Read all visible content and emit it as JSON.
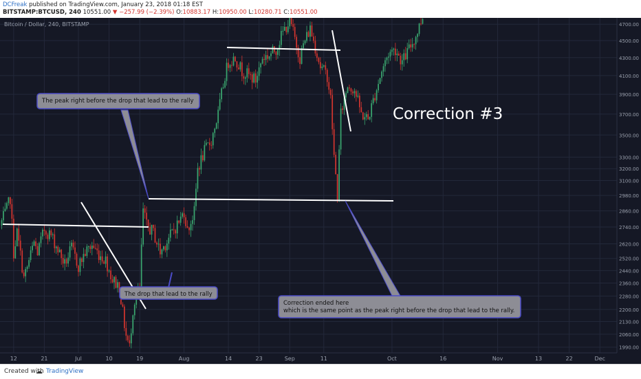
{
  "header": {
    "author": "DCFreak",
    "published_text": "published on TradingView.com, January 23, 2018 01:18 EST",
    "symbol": "BITSTAMP:BTCUSD, 240",
    "last": "10551.00",
    "change": "▼ −257.99 (−2.39%)",
    "ohlc": [
      {
        "label": "O:",
        "value": "10883.17"
      },
      {
        "label": "H:",
        "value": "10950.00"
      },
      {
        "label": "L:",
        "value": "10280.71"
      },
      {
        "label": "C:",
        "value": "10551.00"
      }
    ]
  },
  "footer": {
    "created_with": "Created with",
    "brand": "TradingView"
  },
  "colors": {
    "background": "#151825",
    "up": "#3aa66f",
    "down": "#d2352f",
    "trendline": "#ffffff",
    "grid": "#23283a",
    "callout_fill": "#8d8d95",
    "callout_border": "#4c4cc8"
  },
  "chart_data": {
    "type": "candlestick",
    "title": "Bitcoin / Dollar, 240, BITSTAMP",
    "grid": true,
    "y_scale": "log",
    "y_ticks": [
      1990.0,
      2060.0,
      2130.0,
      2200.0,
      2280.0,
      2360.0,
      2440.0,
      2520.0,
      2620.0,
      2740.0,
      2860.0,
      2980.0,
      3100.0,
      3200.0,
      3300.0,
      3500.0,
      3700.0,
      3900.0,
      4100.0,
      4300.0,
      4500.0,
      4700.0
    ],
    "x_ticks": [
      "12",
      "21",
      "Jul",
      "10",
      "19",
      "Aug",
      "14",
      "23",
      "Sep",
      "11",
      "Oct",
      "16",
      "Nov",
      "13",
      "22",
      "Dec"
    ],
    "x_tick_dates": [
      "2017-06-12",
      "2017-06-21",
      "2017-07-01",
      "2017-07-10",
      "2017-07-19",
      "2017-08-01",
      "2017-08-14",
      "2017-08-23",
      "2017-09-01",
      "2017-09-11",
      "2017-10-01",
      "2017-10-16",
      "2017-11-01",
      "2017-11-13",
      "2017-11-22",
      "2017-12-01"
    ],
    "x_range": [
      "2017-06-08",
      "2017-12-06"
    ],
    "series": [
      {
        "name": "BTCUSD",
        "points": [
          {
            "date": "2017-06-08",
            "value": 2750
          },
          {
            "date": "2017-06-10",
            "value": 2870
          },
          {
            "date": "2017-06-11",
            "value": 2960
          },
          {
            "date": "2017-06-12",
            "value": 2560
          },
          {
            "date": "2017-06-13",
            "value": 2700
          },
          {
            "date": "2017-06-15",
            "value": 2390
          },
          {
            "date": "2017-06-16",
            "value": 2460
          },
          {
            "date": "2017-06-18",
            "value": 2630
          },
          {
            "date": "2017-06-19",
            "value": 2560
          },
          {
            "date": "2017-06-21",
            "value": 2720
          },
          {
            "date": "2017-06-23",
            "value": 2680
          },
          {
            "date": "2017-06-25",
            "value": 2580
          },
          {
            "date": "2017-06-27",
            "value": 2480
          },
          {
            "date": "2017-06-29",
            "value": 2590
          },
          {
            "date": "2017-07-01",
            "value": 2470
          },
          {
            "date": "2017-07-03",
            "value": 2560
          },
          {
            "date": "2017-07-05",
            "value": 2610
          },
          {
            "date": "2017-07-07",
            "value": 2550
          },
          {
            "date": "2017-07-09",
            "value": 2510
          },
          {
            "date": "2017-07-11",
            "value": 2380
          },
          {
            "date": "2017-07-13",
            "value": 2340
          },
          {
            "date": "2017-07-14",
            "value": 2180
          },
          {
            "date": "2017-07-15",
            "value": 2050
          },
          {
            "date": "2017-07-16",
            "value": 1990
          },
          {
            "date": "2017-07-17",
            "value": 2200
          },
          {
            "date": "2017-07-18",
            "value": 2300
          },
          {
            "date": "2017-07-19",
            "value": 2320
          },
          {
            "date": "2017-07-20",
            "value": 2860
          },
          {
            "date": "2017-07-21",
            "value": 2750
          },
          {
            "date": "2017-07-23",
            "value": 2700
          },
          {
            "date": "2017-07-25",
            "value": 2560
          },
          {
            "date": "2017-07-27",
            "value": 2640
          },
          {
            "date": "2017-07-29",
            "value": 2720
          },
          {
            "date": "2017-07-31",
            "value": 2800
          },
          {
            "date": "2017-08-01",
            "value": 2860
          },
          {
            "date": "2017-08-02",
            "value": 2710
          },
          {
            "date": "2017-08-04",
            "value": 2850
          },
          {
            "date": "2017-08-05",
            "value": 3200
          },
          {
            "date": "2017-08-07",
            "value": 3350
          },
          {
            "date": "2017-08-09",
            "value": 3450
          },
          {
            "date": "2017-08-11",
            "value": 3700
          },
          {
            "date": "2017-08-13",
            "value": 4100
          },
          {
            "date": "2017-08-14",
            "value": 4250
          },
          {
            "date": "2017-08-16",
            "value": 4300
          },
          {
            "date": "2017-08-18",
            "value": 4150
          },
          {
            "date": "2017-08-20",
            "value": 4100
          },
          {
            "date": "2017-08-22",
            "value": 4050
          },
          {
            "date": "2017-08-24",
            "value": 4300
          },
          {
            "date": "2017-08-26",
            "value": 4330
          },
          {
            "date": "2017-08-28",
            "value": 4400
          },
          {
            "date": "2017-08-30",
            "value": 4600
          },
          {
            "date": "2017-09-01",
            "value": 4750
          },
          {
            "date": "2017-09-02",
            "value": 4600
          },
          {
            "date": "2017-09-04",
            "value": 4300
          },
          {
            "date": "2017-09-05",
            "value": 4450
          },
          {
            "date": "2017-09-07",
            "value": 4650
          },
          {
            "date": "2017-09-09",
            "value": 4350
          },
          {
            "date": "2017-09-10",
            "value": 4200
          },
          {
            "date": "2017-09-12",
            "value": 4100
          },
          {
            "date": "2017-09-13",
            "value": 3850
          },
          {
            "date": "2017-09-14",
            "value": 3300
          },
          {
            "date": "2017-09-15",
            "value": 2980
          },
          {
            "date": "2017-09-16",
            "value": 3700
          },
          {
            "date": "2017-09-18",
            "value": 4000
          },
          {
            "date": "2017-09-20",
            "value": 3950
          },
          {
            "date": "2017-09-22",
            "value": 3700
          },
          {
            "date": "2017-09-24",
            "value": 3650
          },
          {
            "date": "2017-09-26",
            "value": 3900
          },
          {
            "date": "2017-09-28",
            "value": 4150
          },
          {
            "date": "2017-09-30",
            "value": 4350
          },
          {
            "date": "2017-10-02",
            "value": 4400
          },
          {
            "date": "2017-10-04",
            "value": 4250
          },
          {
            "date": "2017-10-06",
            "value": 4400
          },
          {
            "date": "2017-10-08",
            "value": 4550
          },
          {
            "date": "2017-10-10",
            "value": 4800
          }
        ]
      }
    ],
    "annotations": [
      {
        "text": "Correction #3"
      },
      {
        "text": "The peak right before the drop that lead to the rally"
      },
      {
        "text": "The drop that lead to the rally"
      },
      {
        "text": "Correction ended here\nwhich is the same point as the peak right before the drop that lead to the rally."
      }
    ]
  }
}
